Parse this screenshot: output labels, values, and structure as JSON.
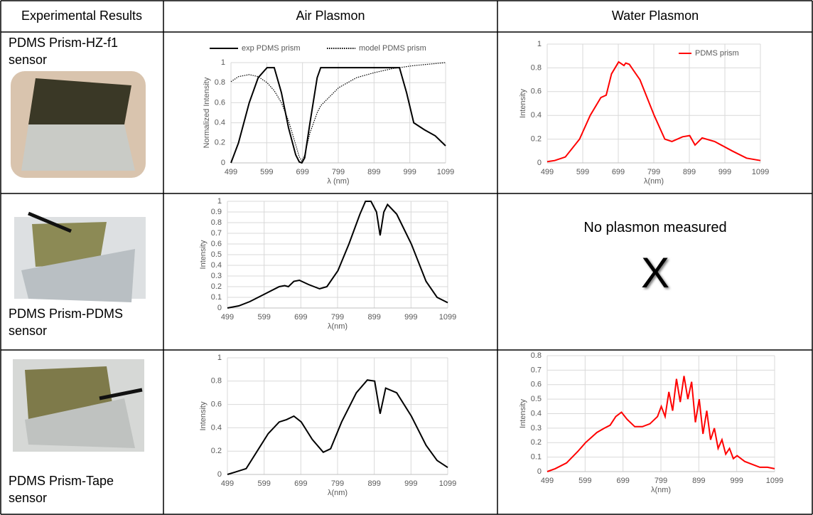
{
  "table": {
    "header": [
      "Experimental Results",
      "Air Plasmon",
      "Water Plasmon"
    ],
    "rows": [
      {
        "label": "PDMS Prism-HZ-f1 sensor"
      },
      {
        "label": "PDMS Prism-PDMS sensor",
        "water_text": "No plasmon measured",
        "water_mark": "X"
      },
      {
        "label": "PDMS Prism-Tape sensor"
      }
    ]
  },
  "chart_data": [
    {
      "type": "line",
      "ylabel": "Normalized Intensity",
      "xlabel": "λ (nm)",
      "x": [
        499,
        520,
        550,
        575,
        600,
        620,
        640,
        660,
        680,
        690,
        697,
        705,
        720,
        740,
        750,
        800,
        850,
        900,
        950,
        970,
        990,
        1010,
        1040,
        1070,
        1099
      ],
      "series": [
        {
          "name": "exp PDMS prism",
          "color": "#000000",
          "style": "solid",
          "values": [
            0,
            0.2,
            0.6,
            0.85,
            0.95,
            0.95,
            0.7,
            0.35,
            0.08,
            0.01,
            0,
            0.05,
            0.4,
            0.85,
            0.95,
            0.95,
            0.95,
            0.95,
            0.95,
            0.95,
            0.7,
            0.4,
            0.33,
            0.27,
            0.17
          ]
        },
        {
          "name": "model PDMS prism",
          "color": "#000000",
          "style": "dotted",
          "values": [
            0.81,
            0.86,
            0.88,
            0.86,
            0.8,
            0.72,
            0.6,
            0.42,
            0.18,
            0.06,
            0.02,
            0.08,
            0.3,
            0.5,
            0.57,
            0.75,
            0.85,
            0.9,
            0.94,
            0.95,
            0.96,
            0.97,
            0.98,
            0.99,
            1.0
          ]
        }
      ],
      "xlim": [
        499,
        1099
      ],
      "xticks": [
        499,
        599,
        699,
        799,
        899,
        999,
        1099
      ],
      "ylim": [
        0,
        1
      ],
      "yticks": [
        0,
        0.2,
        0.4,
        0.6,
        0.8,
        1
      ],
      "grid": true,
      "legend": "top"
    },
    {
      "type": "line",
      "ylabel": "Intensity",
      "xlabel": "λ(nm)",
      "x": [
        499,
        530,
        560,
        600,
        640,
        655,
        665,
        680,
        695,
        720,
        750,
        770,
        800,
        830,
        860,
        875,
        890,
        905,
        915,
        925,
        935,
        960,
        1000,
        1040,
        1070,
        1099
      ],
      "series": [
        {
          "color": "#000000",
          "style": "solid",
          "values": [
            0,
            0.02,
            0.06,
            0.13,
            0.2,
            0.21,
            0.2,
            0.25,
            0.26,
            0.22,
            0.18,
            0.2,
            0.35,
            0.6,
            0.88,
            1,
            1,
            0.9,
            0.68,
            0.9,
            0.97,
            0.88,
            0.6,
            0.25,
            0.1,
            0.05
          ]
        }
      ],
      "xlim": [
        499,
        1099
      ],
      "xticks": [
        499,
        599,
        699,
        799,
        899,
        999,
        1099
      ],
      "ylim": [
        0,
        1
      ],
      "yticks": [
        0,
        0.1,
        0.2,
        0.3,
        0.4,
        0.5,
        0.6,
        0.7,
        0.8,
        0.9,
        1
      ],
      "grid": true
    },
    {
      "type": "line",
      "ylabel": "Intensity",
      "xlabel": "λ(nm)",
      "x": [
        499,
        520,
        550,
        580,
        610,
        640,
        660,
        680,
        700,
        730,
        760,
        780,
        810,
        850,
        880,
        900,
        915,
        930,
        960,
        1000,
        1040,
        1070,
        1099
      ],
      "series": [
        {
          "color": "#000000",
          "style": "solid",
          "values": [
            0,
            0.02,
            0.05,
            0.2,
            0.35,
            0.45,
            0.47,
            0.5,
            0.45,
            0.3,
            0.19,
            0.22,
            0.45,
            0.7,
            0.81,
            0.8,
            0.52,
            0.74,
            0.7,
            0.5,
            0.25,
            0.12,
            0.06
          ]
        }
      ],
      "xlim": [
        499,
        1099
      ],
      "xticks": [
        499,
        599,
        699,
        799,
        899,
        999,
        1099
      ],
      "ylim": [
        0,
        1
      ],
      "yticks": [
        0,
        0.2,
        0.4,
        0.6,
        0.8,
        1
      ],
      "grid": true
    },
    {
      "type": "line",
      "ylabel": "Intensity",
      "xlabel": "λ(nm)",
      "x": [
        499,
        520,
        550,
        590,
        620,
        650,
        665,
        680,
        700,
        715,
        720,
        730,
        760,
        800,
        830,
        850,
        880,
        900,
        915,
        935,
        970,
        1020,
        1060,
        1099
      ],
      "series": [
        {
          "name": "PDMS prism",
          "color": "#ff0000",
          "style": "solid",
          "values": [
            0.01,
            0.02,
            0.05,
            0.2,
            0.4,
            0.55,
            0.57,
            0.75,
            0.85,
            0.82,
            0.84,
            0.83,
            0.7,
            0.4,
            0.2,
            0.18,
            0.22,
            0.23,
            0.15,
            0.21,
            0.18,
            0.1,
            0.04,
            0.02
          ]
        }
      ],
      "xlim": [
        499,
        1099
      ],
      "xticks": [
        499,
        599,
        699,
        799,
        899,
        999,
        1099
      ],
      "ylim": [
        0,
        1
      ],
      "yticks": [
        0,
        0.2,
        0.4,
        0.6,
        0.8,
        1
      ],
      "grid": true,
      "legend": "top-right"
    },
    {
      "type": "line",
      "ylabel": "Intensity",
      "xlabel": "λ(nm)",
      "x": [
        499,
        520,
        550,
        580,
        600,
        630,
        650,
        665,
        680,
        695,
        710,
        730,
        750,
        770,
        790,
        800,
        810,
        820,
        830,
        840,
        850,
        860,
        870,
        880,
        890,
        900,
        910,
        920,
        930,
        940,
        950,
        960,
        970,
        980,
        990,
        1000,
        1020,
        1040,
        1060,
        1080,
        1099
      ],
      "series": [
        {
          "color": "#ff0000",
          "style": "solid",
          "values": [
            0,
            0.02,
            0.06,
            0.14,
            0.2,
            0.27,
            0.3,
            0.32,
            0.38,
            0.41,
            0.36,
            0.31,
            0.31,
            0.33,
            0.38,
            0.45,
            0.38,
            0.55,
            0.42,
            0.64,
            0.48,
            0.66,
            0.5,
            0.62,
            0.34,
            0.5,
            0.26,
            0.42,
            0.22,
            0.3,
            0.16,
            0.22,
            0.12,
            0.16,
            0.09,
            0.11,
            0.07,
            0.05,
            0.03,
            0.03,
            0.02
          ]
        }
      ],
      "xlim": [
        499,
        1099
      ],
      "xticks": [
        499,
        599,
        699,
        799,
        899,
        999,
        1099
      ],
      "ylim": [
        0,
        0.8
      ],
      "yticks": [
        0,
        0.1,
        0.2,
        0.3,
        0.4,
        0.5,
        0.6,
        0.7,
        0.8
      ],
      "grid": true
    }
  ]
}
